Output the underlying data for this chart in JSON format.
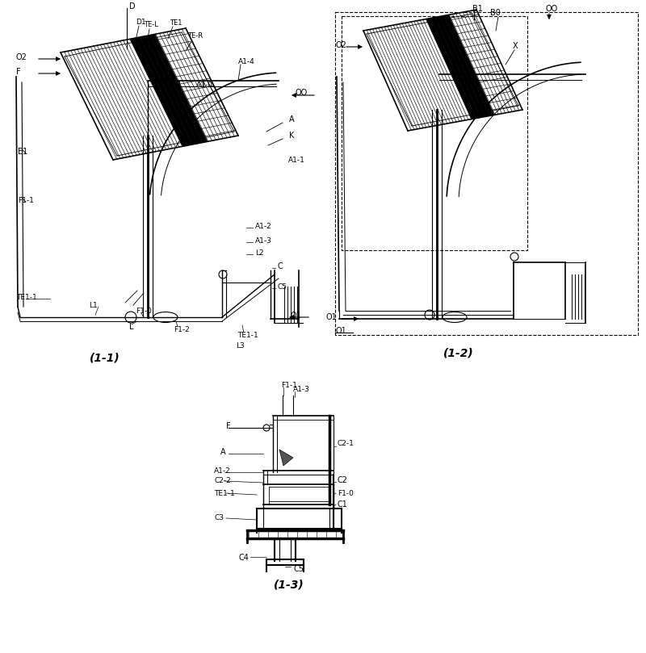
{
  "bg_color": "#ffffff",
  "lc": "#000000",
  "diagram_11_caption": "(1-1)",
  "diagram_12_caption": "(1-2)",
  "diagram_13_caption": "(1-3)"
}
